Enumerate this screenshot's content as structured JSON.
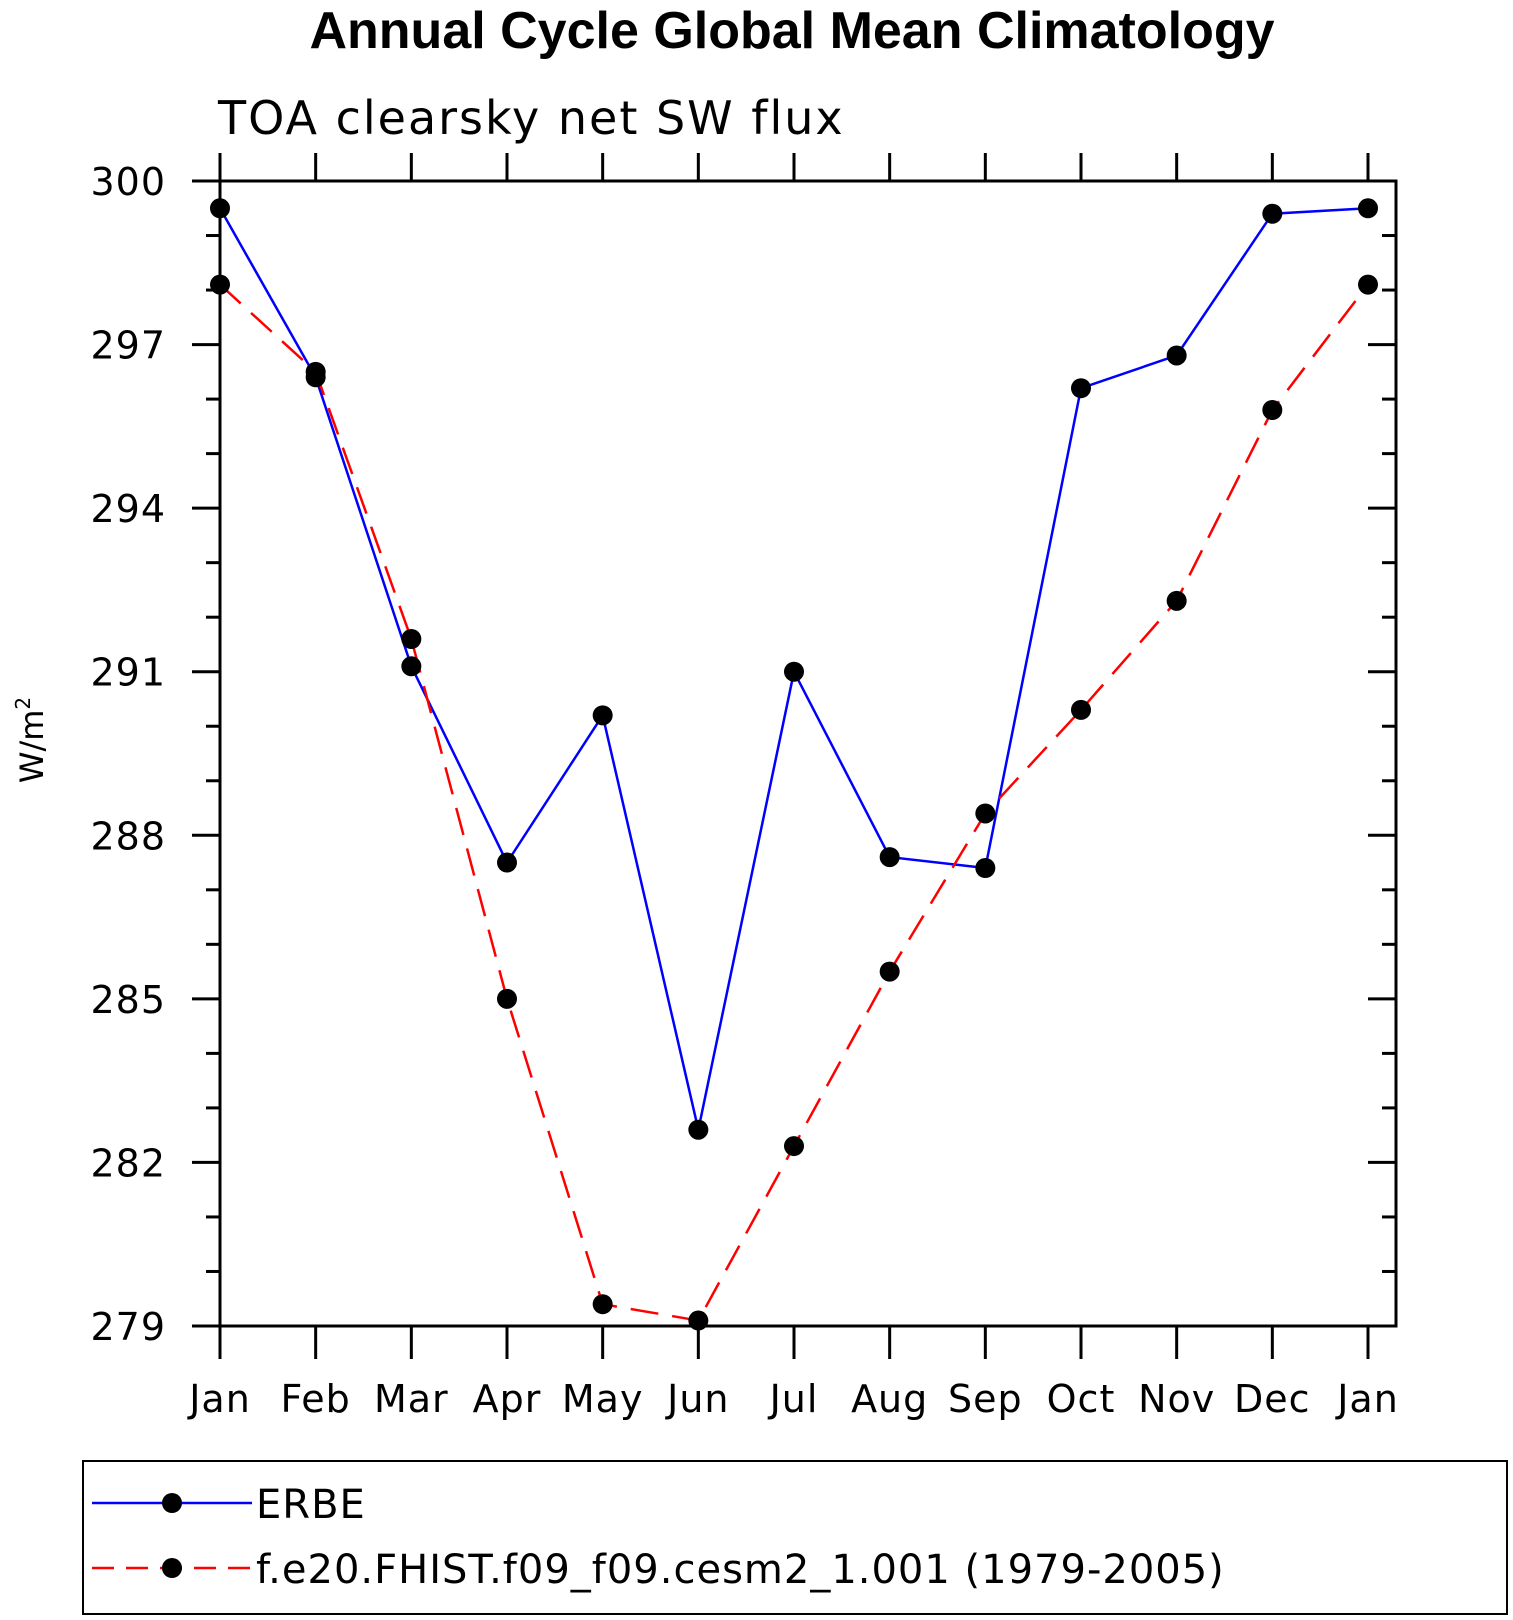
{
  "chart_data": {
    "type": "line",
    "title": "Annual Cycle Global Mean Climatology",
    "subtitle": "TOA clearsky net SW flux",
    "xlabel": "",
    "ylabel_base": "W/m",
    "ylabel_superscript": "2",
    "categories": [
      "Jan",
      "Feb",
      "Mar",
      "Apr",
      "May",
      "Jun",
      "Jul",
      "Aug",
      "Sep",
      "Oct",
      "Nov",
      "Dec",
      "Jan"
    ],
    "ylim": [
      279,
      300
    ],
    "yticks": [
      "279",
      "282",
      "285",
      "288",
      "291",
      "294",
      "297",
      "300"
    ],
    "legend_position": "bottom",
    "series": [
      {
        "name": "ERBE",
        "color": "#0000ff",
        "line_style": "solid",
        "marker": "filled-circle",
        "values": [
          299.5,
          296.4,
          291.1,
          287.5,
          290.2,
          282.6,
          291.0,
          287.6,
          287.4,
          296.2,
          296.8,
          299.4,
          299.5
        ]
      },
      {
        "name": "f.e20.FHIST.f09_f09.cesm2_1.001 (1979-2005)",
        "color": "#ff0000",
        "line_style": "dashed",
        "marker": "filled-circle",
        "values": [
          298.1,
          296.5,
          291.6,
          285.0,
          279.4,
          279.1,
          282.3,
          285.5,
          288.4,
          290.3,
          292.3,
          295.8,
          298.1
        ]
      }
    ]
  }
}
